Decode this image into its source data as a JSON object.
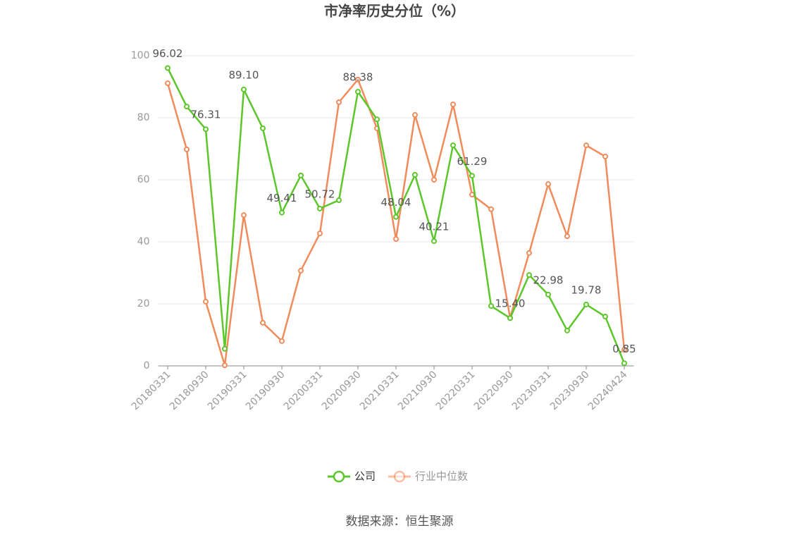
{
  "chart_data": {
    "type": "line",
    "title": "市净率历史分位（%）",
    "source": "数据来源：恒生聚源",
    "categories": [
      "20180331",
      null,
      "20180930",
      null,
      "20190331",
      null,
      "20190930",
      null,
      "20200331",
      null,
      "20200930",
      null,
      "20210331",
      null,
      "20210930",
      null,
      "20220331",
      null,
      "20220930",
      null,
      "20230331",
      null,
      "20230930",
      null,
      "20240424"
    ],
    "series": [
      {
        "name": "公司",
        "color": "#5cc72a",
        "values": [
          96.02,
          83.6,
          76.31,
          5.5,
          89.1,
          76.6,
          49.41,
          61.4,
          50.72,
          53.4,
          88.38,
          79.5,
          48.04,
          61.6,
          40.21,
          71.1,
          61.29,
          19.3,
          15.4,
          29.3,
          22.98,
          11.4,
          19.78,
          15.9,
          0.85
        ],
        "value_labels": [
          "96.02",
          null,
          "76.31",
          null,
          "89.10",
          null,
          "49.41",
          null,
          "50.72",
          null,
          "88.38",
          null,
          "48.04",
          null,
          "40.21",
          null,
          "61.29",
          null,
          "15.40",
          null,
          "22.98",
          null,
          "19.78",
          null,
          "0.85"
        ]
      },
      {
        "name": "行业中位数",
        "color": "#f28b5c",
        "values": [
          91.1,
          69.8,
          20.7,
          0.2,
          48.6,
          13.9,
          8.0,
          30.7,
          42.7,
          85.0,
          92.3,
          76.6,
          40.9,
          80.9,
          60.0,
          84.3,
          55.2,
          50.5,
          15.5,
          36.4,
          58.6,
          41.8,
          71.1,
          67.5,
          5.2
        ]
      }
    ],
    "ylim": [
      0,
      100
    ],
    "yticks": [
      0,
      20,
      40,
      60,
      80,
      100
    ],
    "grid": true,
    "legend": "bottom"
  }
}
